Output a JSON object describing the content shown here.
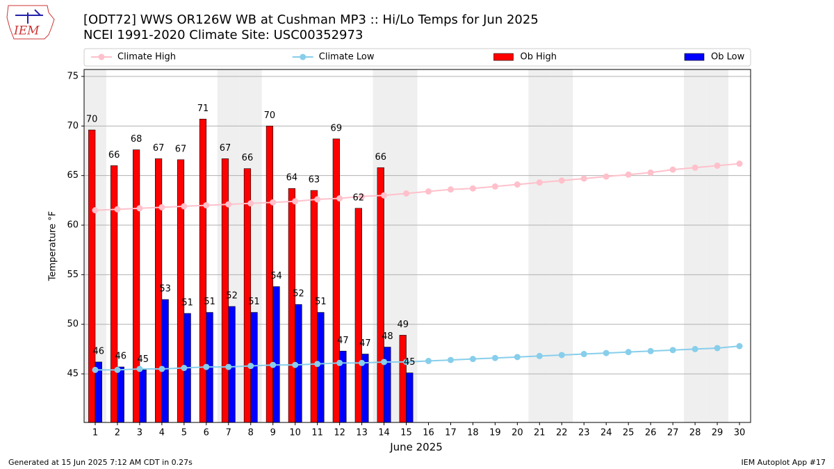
{
  "chart_data": {
    "type": "bar",
    "title": "[ODT72] WWS OR126W WB at Cushman MP3  :: Hi/Lo Temps for Jun 2025",
    "subtitle": "NCEI 1991-2020 Climate Site: USC00352973",
    "logo_text": "IEM",
    "x_label": "June 2025",
    "y_label": "Temperature °F",
    "footer_left": "Generated at 15 Jun 2025 7:12 AM CDT in 0.27s",
    "footer_right": "IEM Autoplot App #17",
    "x": [
      1,
      2,
      3,
      4,
      5,
      6,
      7,
      8,
      9,
      10,
      11,
      12,
      13,
      14,
      15,
      16,
      17,
      18,
      19,
      20,
      21,
      22,
      23,
      24,
      25,
      26,
      27,
      28,
      29,
      30
    ],
    "xlim": [
      0.5,
      30.5
    ],
    "xticks": [
      1,
      2,
      3,
      4,
      5,
      6,
      7,
      8,
      9,
      10,
      11,
      12,
      13,
      14,
      15,
      16,
      17,
      18,
      19,
      20,
      21,
      22,
      23,
      24,
      25,
      26,
      27,
      28,
      29,
      30
    ],
    "ylim": [
      40.1,
      75.7
    ],
    "yticks": [
      45,
      50,
      55,
      60,
      65,
      70,
      75
    ],
    "grid": true,
    "shaded_days": [
      1,
      7,
      8,
      14,
      15,
      21,
      22,
      28,
      29
    ],
    "series": [
      {
        "name": "Climate High",
        "style": "line",
        "color": "#ffc0cb",
        "values": [
          61.5,
          61.6,
          61.7,
          61.8,
          61.9,
          62.0,
          62.1,
          62.2,
          62.3,
          62.4,
          62.6,
          62.7,
          62.9,
          63.0,
          63.2,
          63.4,
          63.6,
          63.7,
          63.9,
          64.1,
          64.3,
          64.5,
          64.7,
          64.9,
          65.1,
          65.3,
          65.6,
          65.8,
          66.0,
          66.2
        ]
      },
      {
        "name": "Climate Low",
        "style": "line",
        "color": "#87ceeb",
        "values": [
          45.4,
          45.4,
          45.5,
          45.5,
          45.6,
          45.7,
          45.7,
          45.8,
          45.9,
          45.9,
          46.0,
          46.1,
          46.1,
          46.2,
          46.2,
          46.3,
          46.4,
          46.5,
          46.6,
          46.7,
          46.8,
          46.9,
          47.0,
          47.1,
          47.2,
          47.3,
          47.4,
          47.5,
          47.6,
          47.8
        ]
      },
      {
        "name": "Ob High",
        "style": "bar",
        "color": "#ff0000",
        "values": [
          69.6,
          66.0,
          67.6,
          66.7,
          66.6,
          70.7,
          66.7,
          65.7,
          70.0,
          63.7,
          63.5,
          68.7,
          61.7,
          65.8,
          48.9,
          null,
          null,
          null,
          null,
          null,
          null,
          null,
          null,
          null,
          null,
          null,
          null,
          null,
          null,
          null
        ],
        "value_labels": [
          "70",
          "66",
          "68",
          "67",
          "67",
          "71",
          "67",
          "66",
          "70",
          "64",
          "63",
          "69",
          "62",
          "66",
          "49",
          null,
          null,
          null,
          null,
          null,
          null,
          null,
          null,
          null,
          null,
          null,
          null,
          null,
          null,
          null
        ]
      },
      {
        "name": "Ob Low",
        "style": "bar",
        "color": "#0000ff",
        "values": [
          46.2,
          45.7,
          45.4,
          52.5,
          51.1,
          51.2,
          51.8,
          51.2,
          53.8,
          52.0,
          51.2,
          47.3,
          47.0,
          47.7,
          45.1,
          null,
          null,
          null,
          null,
          null,
          null,
          null,
          null,
          null,
          null,
          null,
          null,
          null,
          null,
          null
        ],
        "value_labels": [
          "46",
          "46",
          "45",
          "53",
          "51",
          "51",
          "52",
          "51",
          "54",
          "52",
          "51",
          "47",
          "47",
          "48",
          "45",
          null,
          null,
          null,
          null,
          null,
          null,
          null,
          null,
          null,
          null,
          null,
          null,
          null,
          null,
          null
        ]
      }
    ],
    "legend": "top"
  }
}
